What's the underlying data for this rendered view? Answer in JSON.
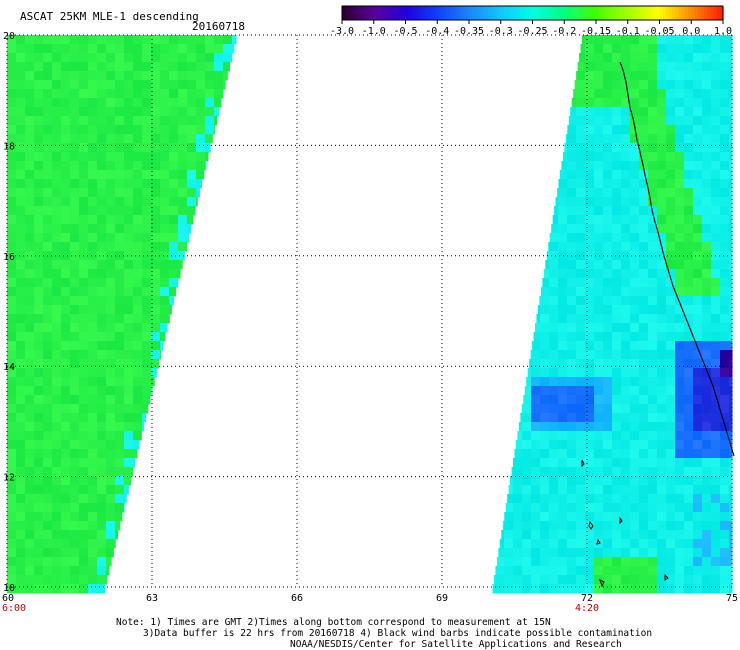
{
  "header": {
    "title": "ASCAT 25KM MLE-1 descending",
    "date": "20160718"
  },
  "colorbar": {
    "labels": [
      "-3.0",
      "-1.0",
      "-0.5",
      "-0.4",
      "-0.35",
      "-0.3",
      "-0.25",
      "-0.2",
      "-0.15",
      "-0.1",
      "-0.05",
      "0.0",
      "1.0"
    ],
    "colors": [
      "#2a0030",
      "#5a00a0",
      "#2000e0",
      "#1040ff",
      "#1888ff",
      "#10c8ff",
      "#00ffe0",
      "#00ff80",
      "#40ff00",
      "#a0ff00",
      "#ffff00",
      "#ff9000",
      "#ff2000"
    ]
  },
  "map": {
    "lon_ticks": [
      {
        "value": 60,
        "label": "60"
      },
      {
        "value": 63,
        "label": "63"
      },
      {
        "value": 66,
        "label": "66"
      },
      {
        "value": 69,
        "label": "69"
      },
      {
        "value": 72,
        "label": "72"
      },
      {
        "value": 75,
        "label": "75"
      }
    ],
    "lat_ticks": [
      {
        "value": 10,
        "label": "10"
      },
      {
        "value": 12,
        "label": "12"
      },
      {
        "value": 14,
        "label": "14"
      },
      {
        "value": 16,
        "label": "16"
      },
      {
        "value": 18,
        "label": "18"
      },
      {
        "value": 20,
        "label": "20"
      }
    ],
    "lon_range": [
      60,
      75
    ],
    "lat_range": [
      10,
      20
    ],
    "gridlines": "dotted",
    "times": [
      {
        "lon": 60,
        "label": "6:00"
      },
      {
        "lon": 72,
        "label": "4:20"
      }
    ],
    "swath_colors": {
      "green": "#28f048",
      "cyan": "#10f0e8",
      "light_blue": "#18b8ff",
      "blue": "#1870ff",
      "deep_blue": "#2030e0",
      "purple": "#3000a0"
    }
  },
  "notes": {
    "line1": "Note: 1) Times are GMT 2)Times along bottom correspond to measurement at 15N",
    "line2": "3)Data buffer is 22 hrs from 20160718 4) Black wind barbs indicate possible contamination",
    "line3": "NOAA/NESDIS/Center for Satellite Applications and Research"
  }
}
